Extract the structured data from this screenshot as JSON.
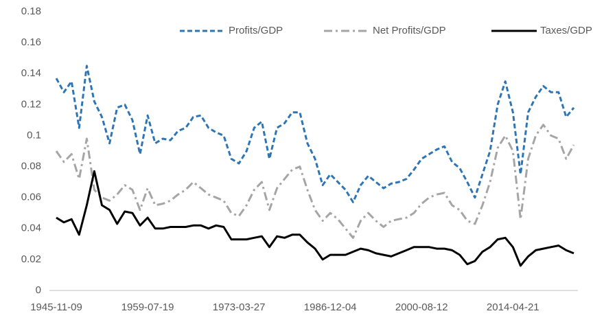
{
  "chart_data": {
    "type": "line",
    "categories": [
      "1945-11-09",
      null,
      null,
      null,
      null,
      null,
      null,
      null,
      null,
      null,
      null,
      null,
      "1959-07-19",
      null,
      null,
      null,
      null,
      null,
      null,
      null,
      null,
      null,
      null,
      null,
      "1973-03-27",
      null,
      null,
      null,
      null,
      null,
      null,
      null,
      null,
      null,
      null,
      null,
      "1986-12-04",
      null,
      null,
      null,
      null,
      null,
      null,
      null,
      null,
      null,
      null,
      null,
      "2000-08-12",
      null,
      null,
      null,
      null,
      null,
      null,
      null,
      null,
      null,
      null,
      null,
      "2014-04-21",
      null,
      null,
      null,
      null,
      null,
      null,
      null,
      null
    ],
    "series": [
      {
        "name": "Profits/GDP",
        "color": "#2e75b6",
        "dash": "dash",
        "values": [
          0.137,
          0.128,
          0.135,
          0.105,
          0.145,
          0.122,
          0.112,
          0.095,
          0.118,
          0.12,
          0.11,
          0.088,
          0.113,
          0.095,
          0.098,
          0.097,
          0.103,
          0.105,
          0.112,
          0.113,
          0.105,
          0.102,
          0.1,
          0.085,
          0.082,
          0.09,
          0.105,
          0.109,
          0.085,
          0.105,
          0.108,
          0.115,
          0.115,
          0.095,
          0.085,
          0.068,
          0.075,
          0.07,
          0.065,
          0.057,
          0.068,
          0.074,
          0.07,
          0.066,
          0.069,
          0.07,
          0.072,
          0.078,
          0.085,
          0.088,
          0.091,
          0.093,
          0.083,
          0.079,
          0.07,
          0.06,
          0.075,
          0.09,
          0.12,
          0.135,
          0.115,
          0.075,
          0.115,
          0.125,
          0.132,
          0.128,
          0.128,
          0.112,
          0.118
        ]
      },
      {
        "name": "Net Profits/GDP",
        "color": "#a5a5a5",
        "dash": "dashdot",
        "values": [
          0.09,
          0.083,
          0.088,
          0.072,
          0.098,
          0.065,
          0.06,
          0.058,
          0.062,
          0.068,
          0.065,
          0.052,
          0.066,
          0.055,
          0.056,
          0.058,
          0.062,
          0.065,
          0.07,
          0.066,
          0.062,
          0.06,
          0.058,
          0.05,
          0.048,
          0.055,
          0.065,
          0.07,
          0.052,
          0.066,
          0.072,
          0.078,
          0.08,
          0.065,
          0.052,
          0.045,
          0.05,
          0.046,
          0.04,
          0.034,
          0.045,
          0.05,
          0.045,
          0.041,
          0.045,
          0.046,
          0.047,
          0.05,
          0.056,
          0.06,
          0.062,
          0.063,
          0.055,
          0.052,
          0.045,
          0.043,
          0.055,
          0.07,
          0.092,
          0.1,
          0.09,
          0.046,
          0.085,
          0.1,
          0.107,
          0.1,
          0.098,
          0.085,
          0.094
        ]
      },
      {
        "name": "Taxes/GDP",
        "color": "#000000",
        "dash": "solid",
        "values": [
          0.047,
          0.044,
          0.046,
          0.036,
          0.055,
          0.077,
          0.055,
          0.052,
          0.043,
          0.051,
          0.05,
          0.042,
          0.047,
          0.04,
          0.04,
          0.041,
          0.041,
          0.041,
          0.042,
          0.042,
          0.04,
          0.042,
          0.041,
          0.033,
          0.033,
          0.033,
          0.034,
          0.035,
          0.028,
          0.035,
          0.034,
          0.036,
          0.036,
          0.031,
          0.027,
          0.02,
          0.023,
          0.023,
          0.023,
          0.025,
          0.027,
          0.026,
          0.024,
          0.023,
          0.022,
          0.024,
          0.026,
          0.028,
          0.028,
          0.028,
          0.027,
          0.027,
          0.026,
          0.023,
          0.017,
          0.019,
          0.025,
          0.028,
          0.033,
          0.034,
          0.028,
          0.016,
          0.022,
          0.026,
          0.027,
          0.028,
          0.029,
          0.026,
          0.024
        ]
      }
    ],
    "ylim": [
      0,
      0.18
    ],
    "yticks": [
      0,
      0.02,
      0.04,
      0.06,
      0.08,
      0.1,
      0.12,
      0.14,
      0.16,
      0.18
    ],
    "grid": false,
    "legend": "top"
  }
}
